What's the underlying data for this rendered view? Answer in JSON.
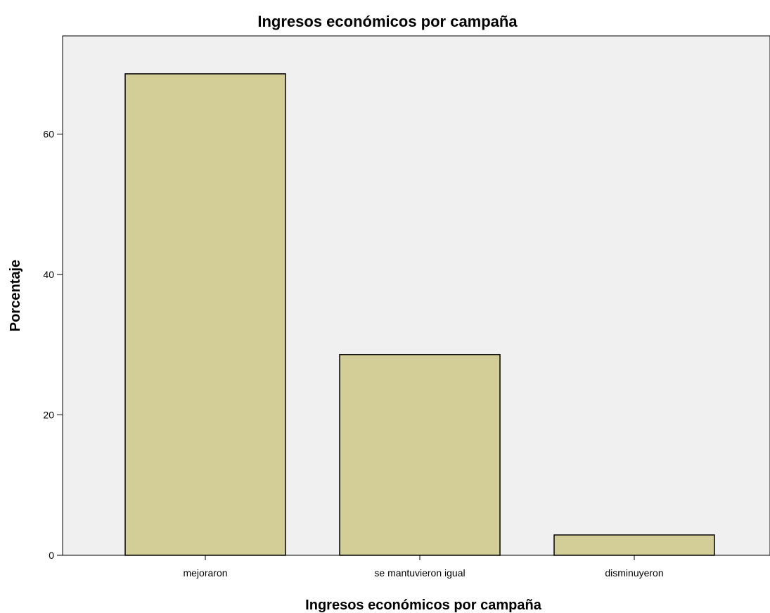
{
  "colors": {
    "plot_background": "#f0f0f0",
    "bar_fill": "#d3ce97",
    "bar_stroke": "#000000",
    "axis": "#000000"
  },
  "chart_data": {
    "type": "bar",
    "title": "Ingresos económicos por campaña",
    "xlabel": "Ingresos económicos por campaña",
    "ylabel": "Porcentaje",
    "categories": [
      "mejoraron",
      "se mantuvieron igual",
      "disminuyeron"
    ],
    "values": [
      68.6,
      28.6,
      2.9
    ],
    "ylim": [
      0,
      74
    ],
    "yticks": [
      0,
      20,
      40,
      60
    ],
    "grid": false,
    "legend": "none"
  }
}
